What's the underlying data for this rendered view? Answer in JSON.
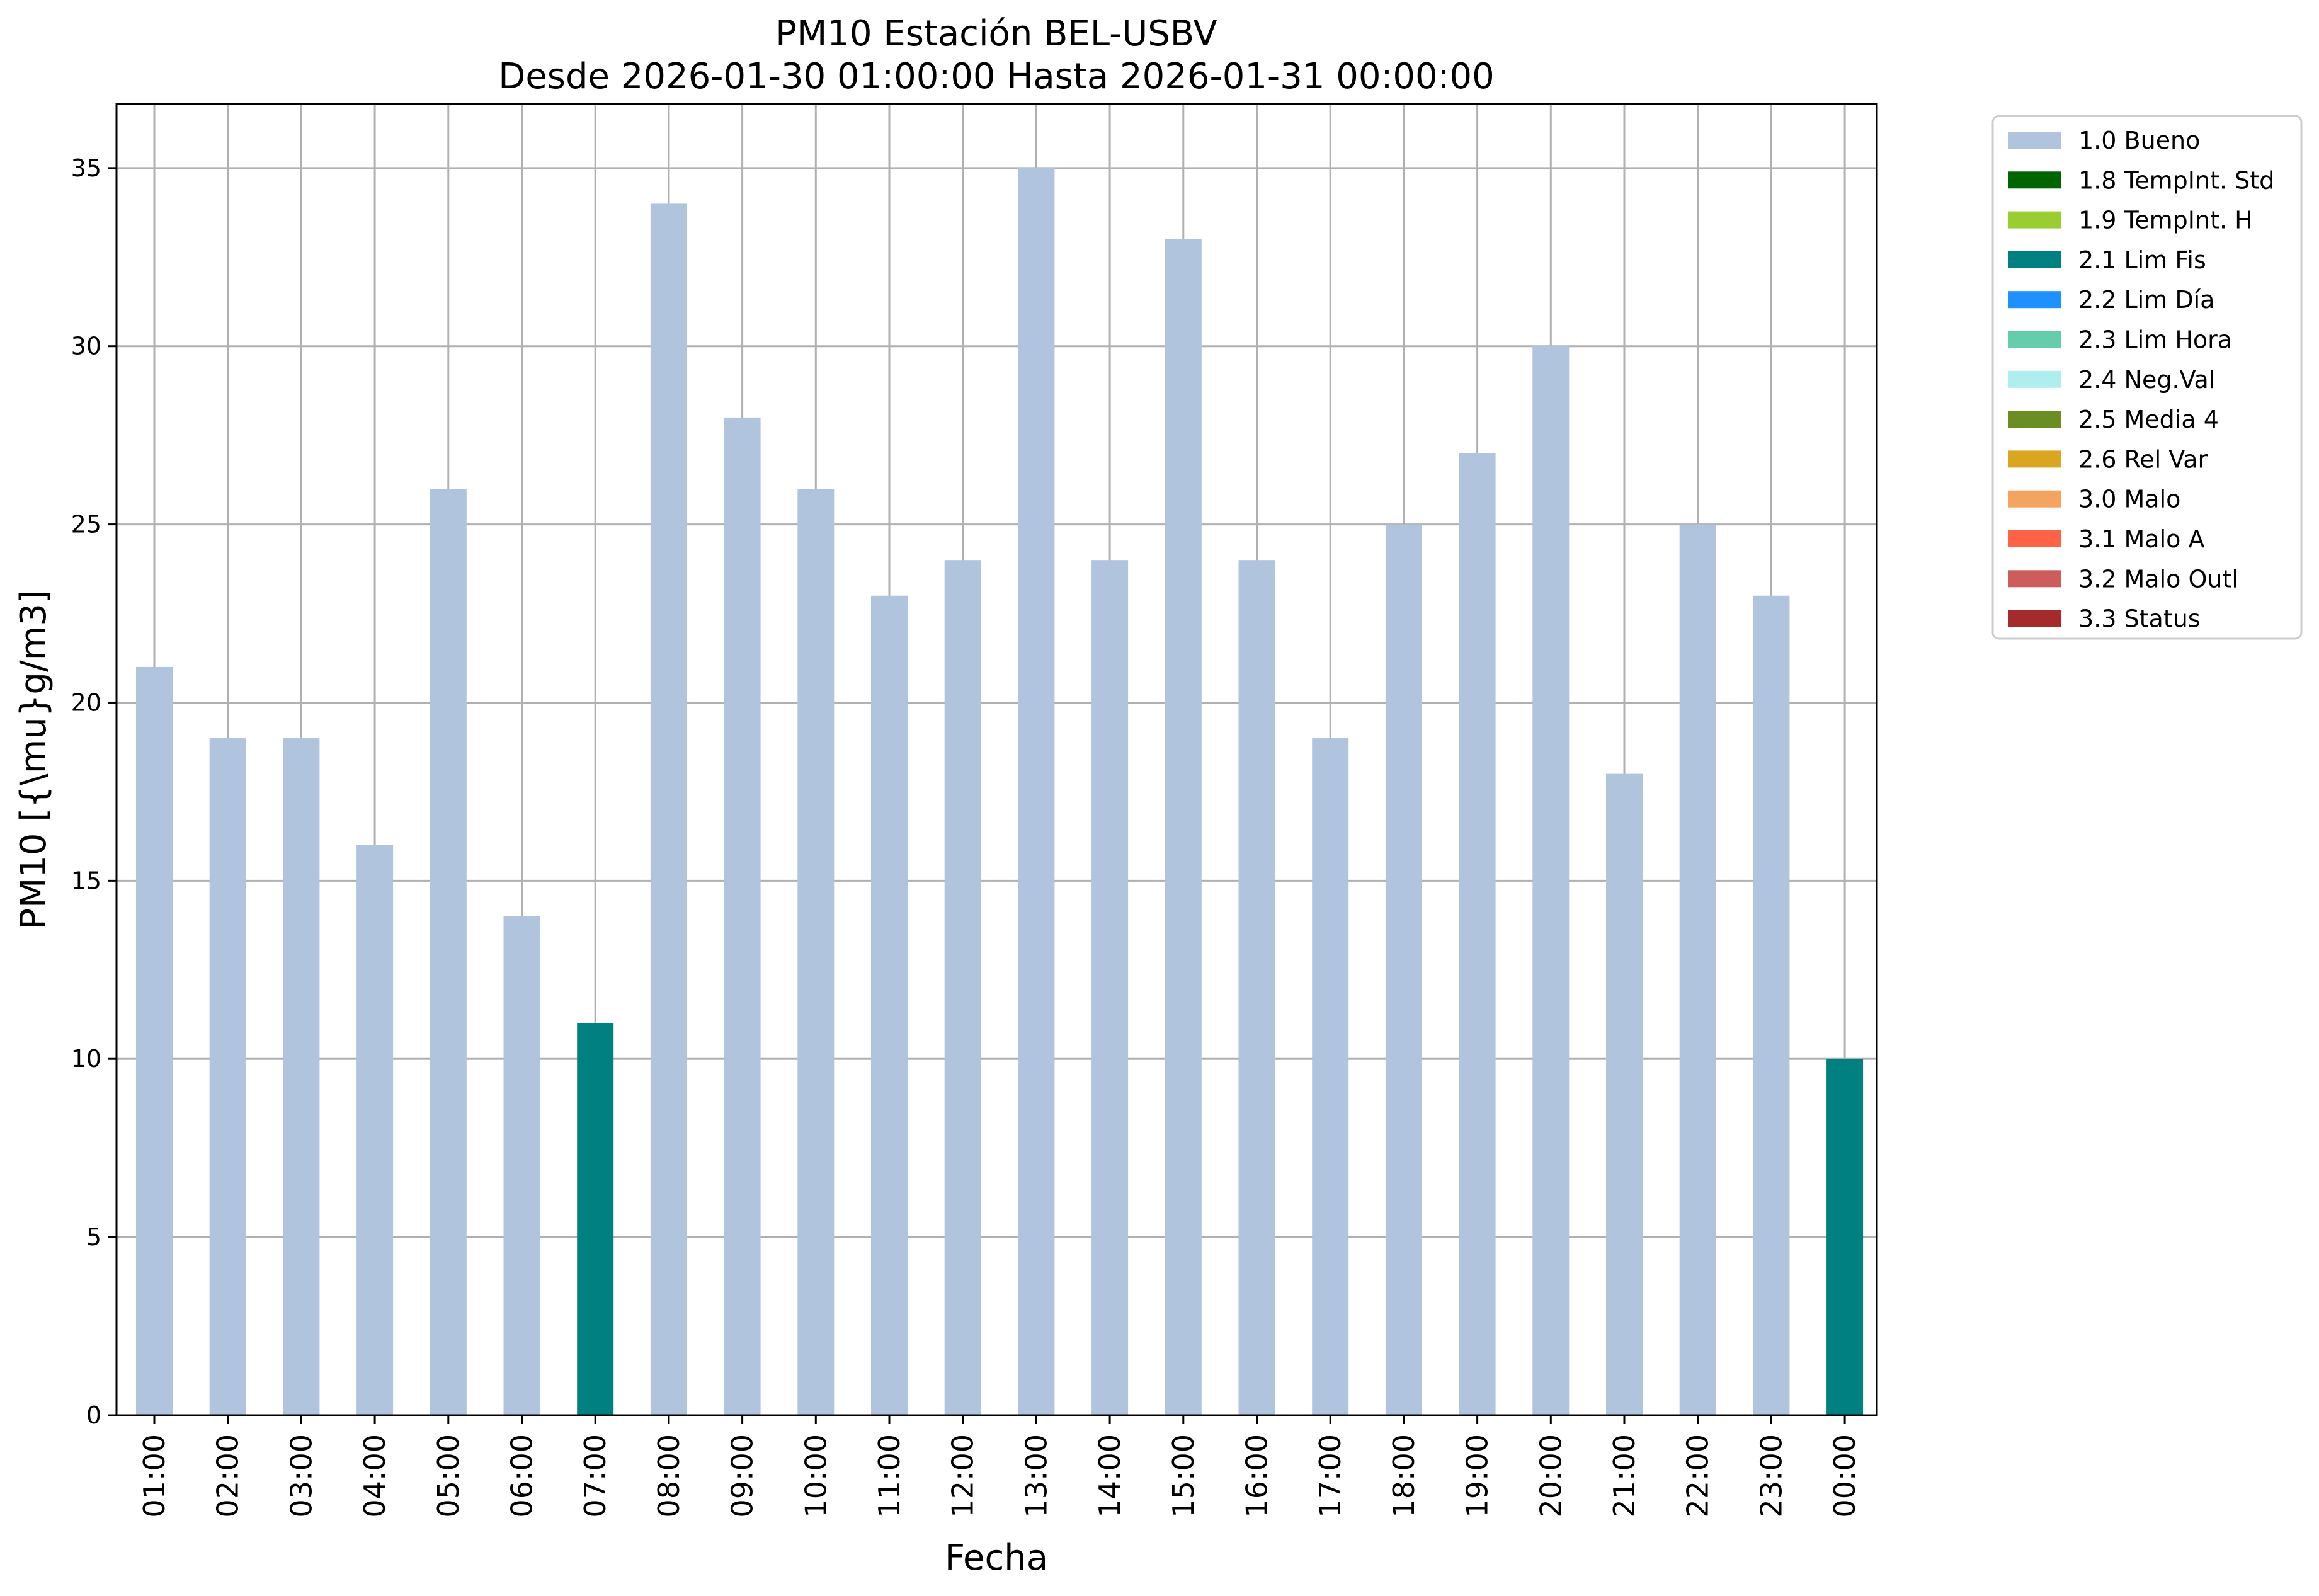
{
  "chart_data": {
    "type": "bar",
    "title": "PM10 Estación BEL-USBV",
    "subtitle": "Desde 2026-01-30 01:00:00 Hasta 2026-01-31 00:00:00",
    "xlabel": "Fecha",
    "ylabel": "PM10 [{\\mu}g/m3]",
    "ylim": [
      0,
      36.8
    ],
    "yticks": [
      0,
      5,
      10,
      15,
      20,
      25,
      30,
      35
    ],
    "grid": true,
    "legend_position": "outside-top-right",
    "categories": [
      "01:00",
      "02:00",
      "03:00",
      "04:00",
      "05:00",
      "06:00",
      "07:00",
      "08:00",
      "09:00",
      "10:00",
      "11:00",
      "12:00",
      "13:00",
      "14:00",
      "15:00",
      "16:00",
      "17:00",
      "18:00",
      "19:00",
      "20:00",
      "21:00",
      "22:00",
      "23:00",
      "00:00"
    ],
    "values": [
      21,
      19,
      19,
      16,
      26,
      14,
      11,
      34,
      28,
      26,
      23,
      24,
      35,
      24,
      33,
      24,
      19,
      25,
      27,
      30,
      18,
      25,
      23,
      10
    ],
    "flags": [
      "1.0 Bueno",
      "1.0 Bueno",
      "1.0 Bueno",
      "1.0 Bueno",
      "1.0 Bueno",
      "1.0 Bueno",
      "2.1 Lim Fis",
      "1.0 Bueno",
      "1.0 Bueno",
      "1.0 Bueno",
      "1.0 Bueno",
      "1.0 Bueno",
      "1.0 Bueno",
      "1.0 Bueno",
      "1.0 Bueno",
      "1.0 Bueno",
      "1.0 Bueno",
      "1.0 Bueno",
      "1.0 Bueno",
      "1.0 Bueno",
      "1.0 Bueno",
      "1.0 Bueno",
      "1.0 Bueno",
      "2.1 Lim Fis"
    ],
    "legend": [
      {
        "label": "1.0 Bueno",
        "color": "#b0c4de"
      },
      {
        "label": "1.8 TempInt. Std",
        "color": "#006400"
      },
      {
        "label": "1.9 TempInt. H",
        "color": "#9acd32"
      },
      {
        "label": "2.1 Lim Fis",
        "color": "#008080"
      },
      {
        "label": "2.2 Lim Día",
        "color": "#1e90ff"
      },
      {
        "label": "2.3 Lim Hora",
        "color": "#66cdaa"
      },
      {
        "label": "2.4 Neg.Val",
        "color": "#afeeee"
      },
      {
        "label": "2.5 Media 4",
        "color": "#6b8e23"
      },
      {
        "label": "2.6 Rel Var",
        "color": "#daa520"
      },
      {
        "label": "3.0 Malo",
        "color": "#f4a460"
      },
      {
        "label": "3.1 Malo A",
        "color": "#ff6347"
      },
      {
        "label": "3.2 Malo Outl",
        "color": "#cd5c5c"
      },
      {
        "label": "3.3 Status",
        "color": "#a52a2a"
      }
    ]
  }
}
